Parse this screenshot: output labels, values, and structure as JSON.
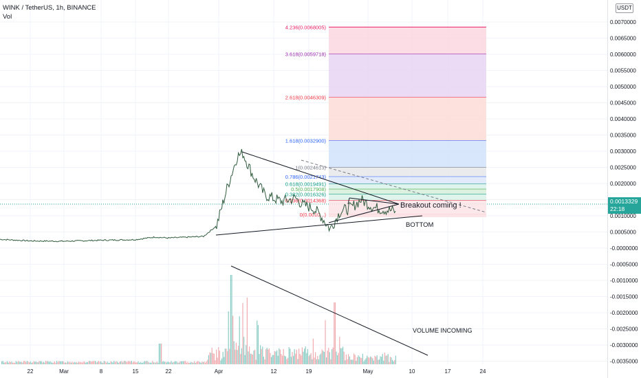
{
  "header": {
    "title": "WINK / TetherUS, 1h, BINANCE",
    "subtitle": "Vol"
  },
  "currency_button": "USDT",
  "last_price": {
    "value": "0.0013329",
    "countdown": "22:18",
    "color": "#26a69a"
  },
  "annotations": {
    "breakout": "Breakout coming !",
    "bottom": "BOTTOM",
    "volume": "VOLUME INCOMING"
  },
  "chart_data": [
    {
      "type": "line",
      "title": "WINK / TetherUS, 1h, BINANCE",
      "y_unit": "USDT",
      "ylim": [
        -0.0036,
        0.0072
      ],
      "y_tick_labels": [
        "0.0070000",
        "0.0065000",
        "0.0060000",
        "0.0055000",
        "0.0050000",
        "0.0045000",
        "0.0040000",
        "0.0035000",
        "0.0030000",
        "0.0025000",
        "0.0020000",
        "0.0015000",
        "0.0010000",
        "0.0005000",
        "-0.0000000",
        "-0.0005000",
        "-0.0010000",
        "-0.0015000",
        "-0.0020000",
        "-0.0025000",
        "-0.0030000",
        "-0.0035000"
      ],
      "x_tick_labels": [
        "22",
        "Mar",
        "8",
        "15",
        "22",
        "Apr",
        "12",
        "19",
        "May",
        "10",
        "17",
        "24"
      ],
      "series": [
        {
          "x": [
            "Feb 16",
            "Feb 22",
            "Mar 1",
            "Mar 8",
            "Mar 15",
            "Mar 19",
            "Mar 22",
            "Mar 29",
            "Apr 2",
            "Apr 4",
            "Apr 5",
            "Apr 6",
            "Apr 7",
            "Apr 8",
            "Apr 10",
            "Apr 12",
            "Apr 15",
            "Apr 18",
            "Apr 20",
            "Apr 23",
            "Apr 25",
            "Apr 27",
            "Apr 29",
            "May 2",
            "May 5"
          ],
          "values": [
            0.00023,
            0.00018,
            0.00017,
            0.0002,
            0.00022,
            0.0003,
            0.00027,
            0.00032,
            0.00065,
            0.0018,
            0.0028,
            0.0029,
            0.0022,
            0.0016,
            0.0014,
            0.0015,
            0.0013,
            0.0012,
            0.001,
            0.00055,
            0.0011,
            0.0012,
            0.00145,
            0.0012,
            0.0011
          ]
        }
      ],
      "fibonacci": [
        {
          "ratio": "0",
          "price": "0.0010",
          "label": "0(0.0010...)"
        },
        {
          "ratio": "0.236",
          "price": "0.0014368",
          "label": "0.236(0.0014368)"
        },
        {
          "ratio": "0.382",
          "price": "0.0016326",
          "label": "0.382(0.0016326)"
        },
        {
          "ratio": "0.5",
          "price": "0.0017908",
          "label": "0.5(0.0017908)"
        },
        {
          "ratio": "0.618",
          "price": "0.0019491",
          "label": "0.618(0.0019491)"
        },
        {
          "ratio": "0.786",
          "price": "0.0021743",
          "label": "0.786(0.0021743)"
        },
        {
          "ratio": "1",
          "price": "0.0024613",
          "label": "1(0.0024613)"
        },
        {
          "ratio": "1.618",
          "price": "0.0032900",
          "label": "1.618(0.0032900)"
        },
        {
          "ratio": "2.618",
          "price": "0.0046309",
          "label": "2.618(0.0046309)"
        },
        {
          "ratio": "3.618",
          "price": "0.0059718",
          "label": "3.618(0.0059718)"
        },
        {
          "ratio": "4.236",
          "price": "0.0068005",
          "label": "4.236(0.0068005)"
        }
      ],
      "fib_colors": [
        "#f23645",
        "#f23645",
        "#089981",
        "#4caf50",
        "#089981",
        "#2962ff",
        "#787b86",
        "#2962ff",
        "#f23645",
        "#9c27b0",
        "#e91e63"
      ],
      "fib_fills": [
        "#fce4e6",
        "#fce4e6",
        "#d8f2ea",
        "#d6efdb",
        "#d8f2ea",
        "#dde7fb",
        "#e6e7ea",
        "#d2e3fc",
        "#fddcd6",
        "#e8d5f2",
        "#fbd6e0"
      ]
    },
    {
      "type": "bar",
      "title": "Vol",
      "x_range": [
        "Feb 16",
        "May 8"
      ],
      "values": "hourly volume histogram, low Feb–Mar, spikes around Apr 5 and Apr 23"
    }
  ]
}
